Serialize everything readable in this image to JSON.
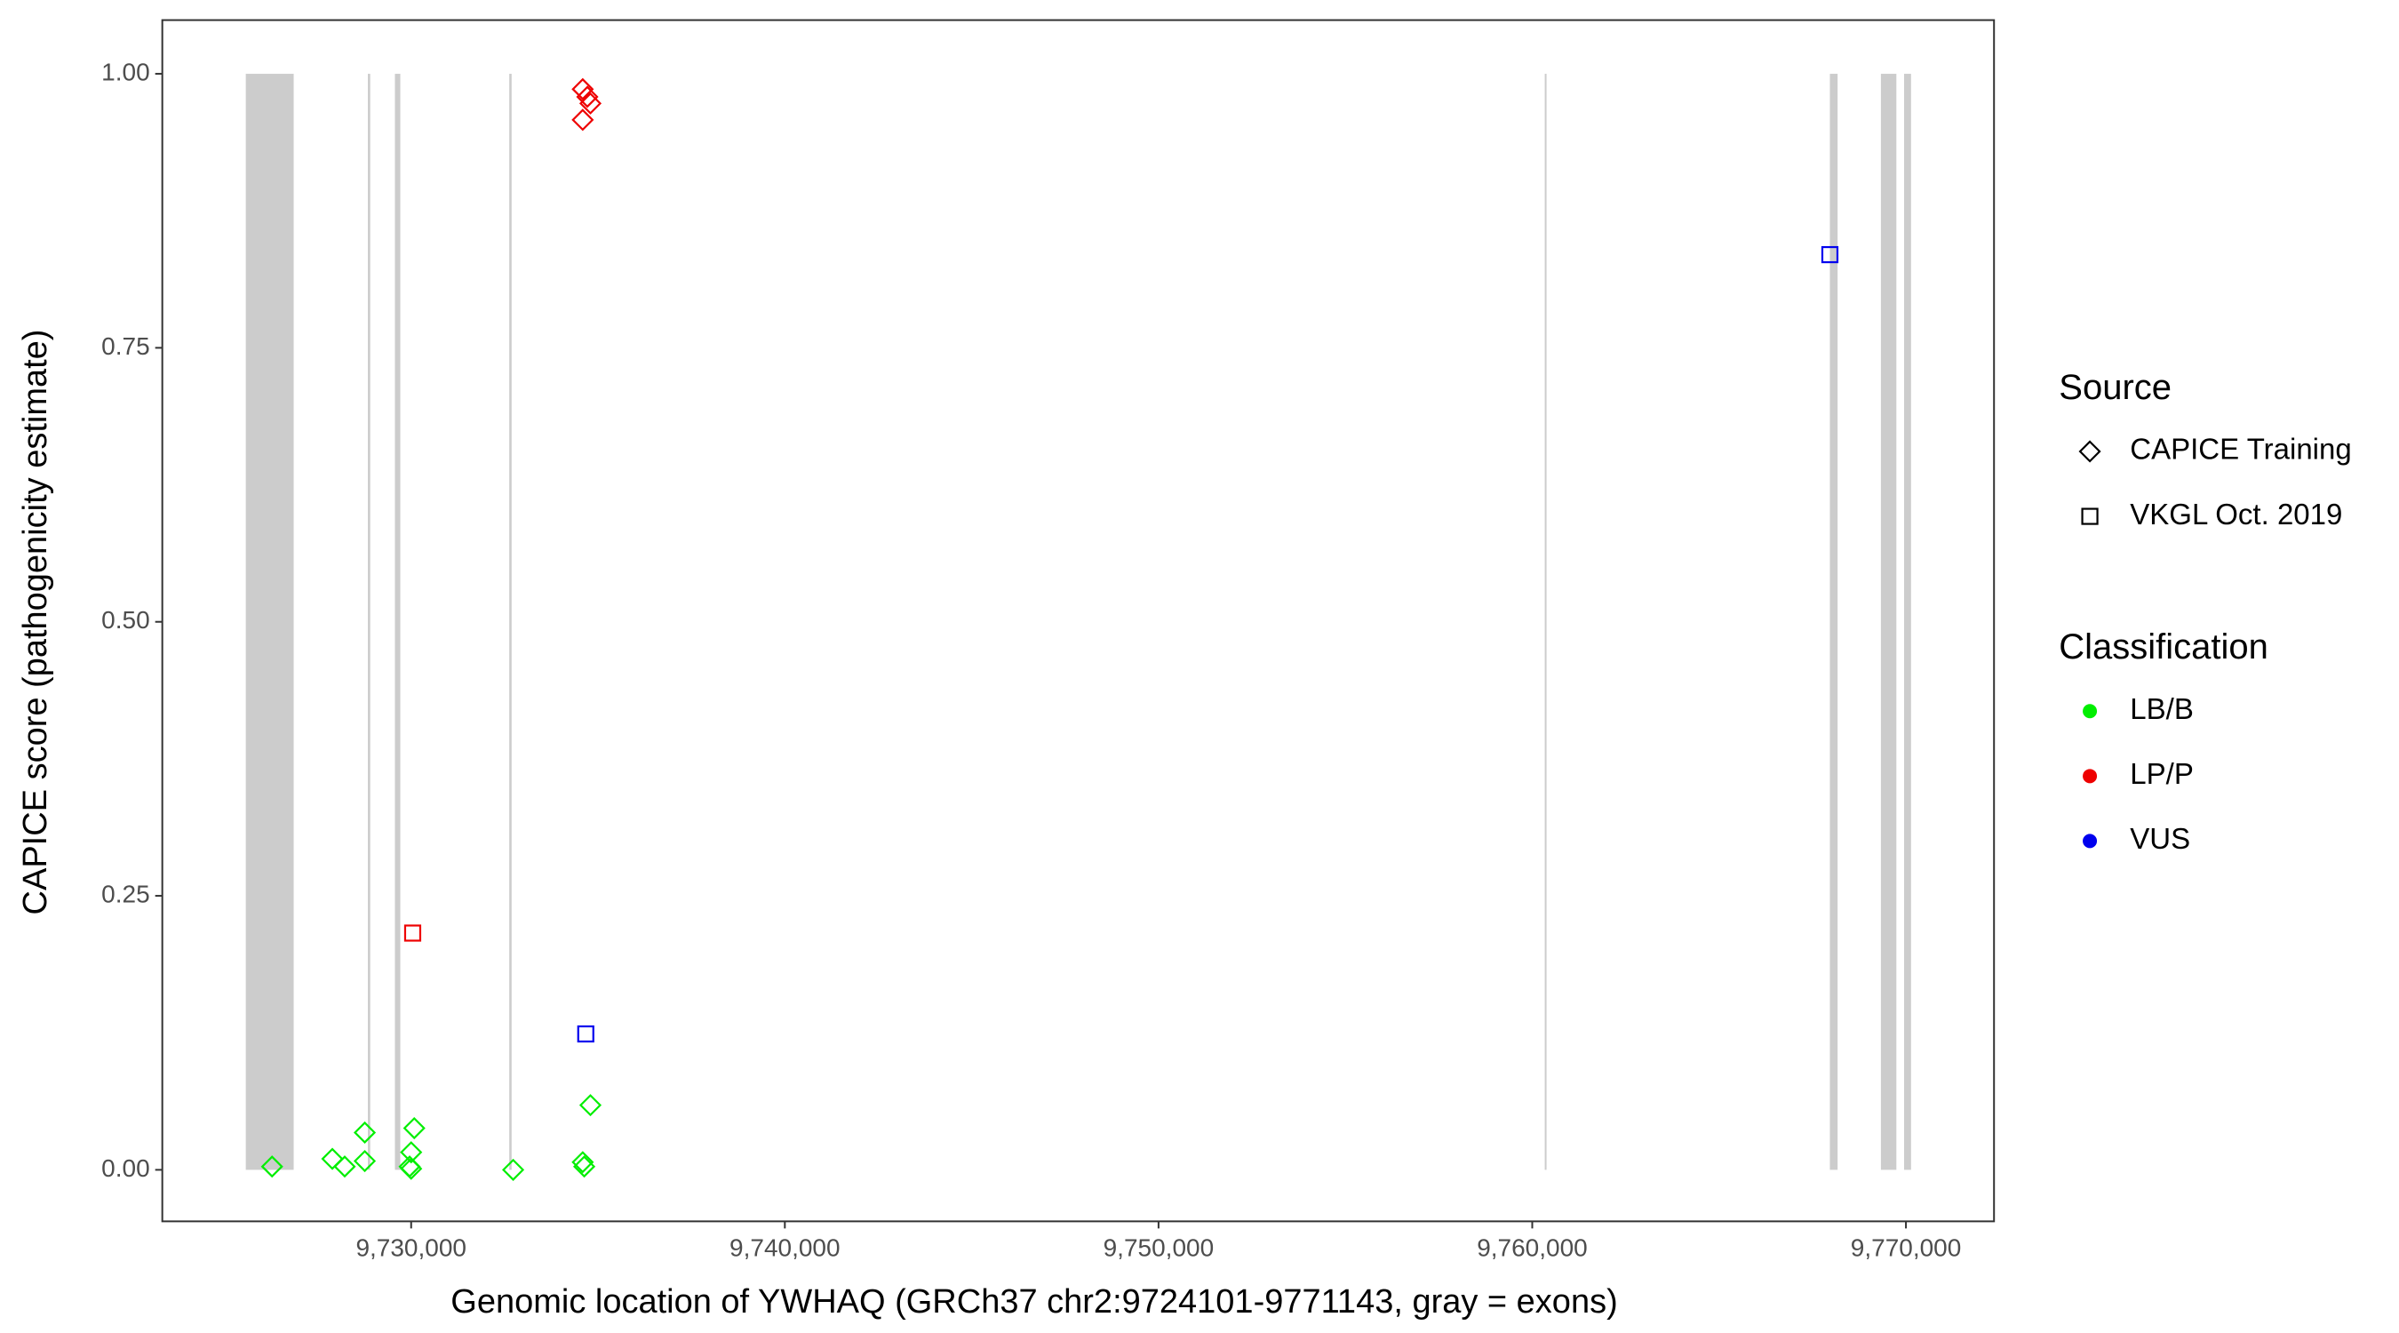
{
  "chart_data": {
    "type": "scatter",
    "xlabel": "Genomic location of YWHAQ (GRCh37 chr2:9724101-9771143, gray = exons)",
    "ylabel": "CAPICE score (pathogenicity estimate)",
    "xlim": [
      9723341,
      9772357
    ],
    "ylim": [
      -0.047,
      1.049
    ],
    "xticks": [
      {
        "value": 9730000,
        "label": "9,730,000"
      },
      {
        "value": 9740000,
        "label": "9,740,000"
      },
      {
        "value": 9750000,
        "label": "9,750,000"
      },
      {
        "value": 9760000,
        "label": "9,760,000"
      },
      {
        "value": 9770000,
        "label": "9,770,000"
      }
    ],
    "yticks": [
      {
        "value": 0,
        "label": "0.00"
      },
      {
        "value": 0.25,
        "label": "0.25"
      },
      {
        "value": 0.5,
        "label": "0.50"
      },
      {
        "value": 0.75,
        "label": "0.75"
      },
      {
        "value": 1,
        "label": "1.00"
      }
    ],
    "grid": false,
    "exon_color": "#cccccc",
    "exons": [
      [
        9725575,
        9726857
      ],
      [
        9728842,
        9728904
      ],
      [
        9729566,
        9729710
      ],
      [
        9732626,
        9732688
      ],
      [
        9760335,
        9760377
      ],
      [
        9767965,
        9768172
      ],
      [
        9769330,
        9769744
      ],
      [
        9769950,
        9770136
      ]
    ],
    "legend_position": "right",
    "legends": [
      {
        "title": "Source",
        "items": [
          {
            "label": "CAPICE Training",
            "shape": "diamond"
          },
          {
            "label": "VKGL Oct. 2019",
            "shape": "square"
          }
        ]
      },
      {
        "title": "Classification",
        "items": [
          {
            "label": "LB/B",
            "color": "#00ee00"
          },
          {
            "label": "LP/P",
            "color": "#ee0000"
          },
          {
            "label": "VUS",
            "color": "#0000ee"
          }
        ]
      }
    ],
    "series": [
      {
        "shape": "diamond",
        "color": "#00ee00",
        "x": [
          9726278,
          9727891,
          9728222,
          9728759,
          9728759,
          9730000,
          9729959,
          9730083,
          9730000,
          9732730,
          9734591,
          9734632,
          9734797
        ],
        "values": [
          0.003,
          0.01,
          0.003,
          0.008,
          0.034,
          0.016,
          0.003,
          0.038,
          0.001,
          0,
          0.007,
          0.003,
          0.059
        ]
      },
      {
        "shape": "diamond",
        "color": "#ee0000",
        "x": [
          9734591,
          9734715,
          9734797,
          9734591
        ],
        "values": [
          0.986,
          0.979,
          0.973,
          0.958
        ]
      },
      {
        "shape": "square",
        "color": "#ee0000",
        "x": [
          9730041
        ],
        "values": [
          0.216
        ]
      },
      {
        "shape": "square",
        "color": "#0000ee",
        "x": [
          9734673,
          9767965
        ],
        "values": [
          0.124,
          0.835
        ]
      }
    ]
  }
}
